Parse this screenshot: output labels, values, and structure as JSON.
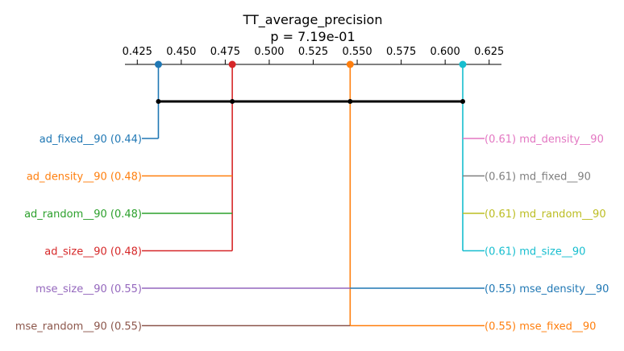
{
  "chart_data": {
    "type": "critical-difference-diagram",
    "title": "TT_average_precision",
    "subtitle": "p = 7.19e-01",
    "xlim": [
      0.418,
      0.632
    ],
    "ticks": [
      "0.425",
      "0.450",
      "0.475",
      "0.500",
      "0.525",
      "0.550",
      "0.575",
      "0.600",
      "0.625"
    ],
    "tick_values": [
      0.425,
      0.45,
      0.475,
      0.5,
      0.525,
      0.55,
      0.575,
      0.6,
      0.625
    ],
    "clique_range": [
      0.437,
      0.61
    ],
    "clique_points": [
      0.437,
      0.479,
      0.546,
      0.61
    ],
    "groups": [
      {
        "value": 0.437,
        "color": "#1f77b4"
      },
      {
        "value": 0.479,
        "color": "#d62728"
      },
      {
        "value": 0.546,
        "color": "#ff7f0e"
      },
      {
        "value": 0.61,
        "color": "#17becf"
      }
    ],
    "left_labels": [
      {
        "label": "ad_fixed__90 (0.44)",
        "value": 0.437,
        "color": "#1f77b4",
        "line_color": "#1f77b4"
      },
      {
        "label": "ad_density__90 (0.48)",
        "value": 0.479,
        "color": "#ff7f0e",
        "line_color": "#ff7f0e"
      },
      {
        "label": "ad_random__90 (0.48)",
        "value": 0.479,
        "color": "#2ca02c",
        "line_color": "#2ca02c"
      },
      {
        "label": "ad_size__90 (0.48)",
        "value": 0.479,
        "color": "#d62728",
        "line_color": "#d62728"
      },
      {
        "label": "mse_size__90 (0.55)",
        "value": 0.546,
        "color": "#9467bd",
        "line_color": "#9467bd"
      },
      {
        "label": "mse_random__90 (0.55)",
        "value": 0.546,
        "color": "#8c564b",
        "line_color": "#8c564b"
      }
    ],
    "right_labels": [
      {
        "label": "(0.61) md_density__90",
        "value": 0.61,
        "color": "#e377c2",
        "line_color": "#e377c2"
      },
      {
        "label": "(0.61) md_fixed__90",
        "value": 0.61,
        "color": "#7f7f7f",
        "line_color": "#7f7f7f"
      },
      {
        "label": "(0.61) md_random__90",
        "value": 0.61,
        "color": "#bcbd22",
        "line_color": "#bcbd22"
      },
      {
        "label": "(0.61) md_size__90",
        "value": 0.61,
        "color": "#17becf",
        "line_color": "#17becf"
      },
      {
        "label": "(0.55) mse_density__90",
        "value": 0.546,
        "color": "#1f77b4",
        "line_color": "#1f77b4"
      },
      {
        "label": "(0.55) mse_fixed__90",
        "value": 0.546,
        "color": "#ff7f0e",
        "line_color": "#ff7f0e"
      }
    ]
  }
}
